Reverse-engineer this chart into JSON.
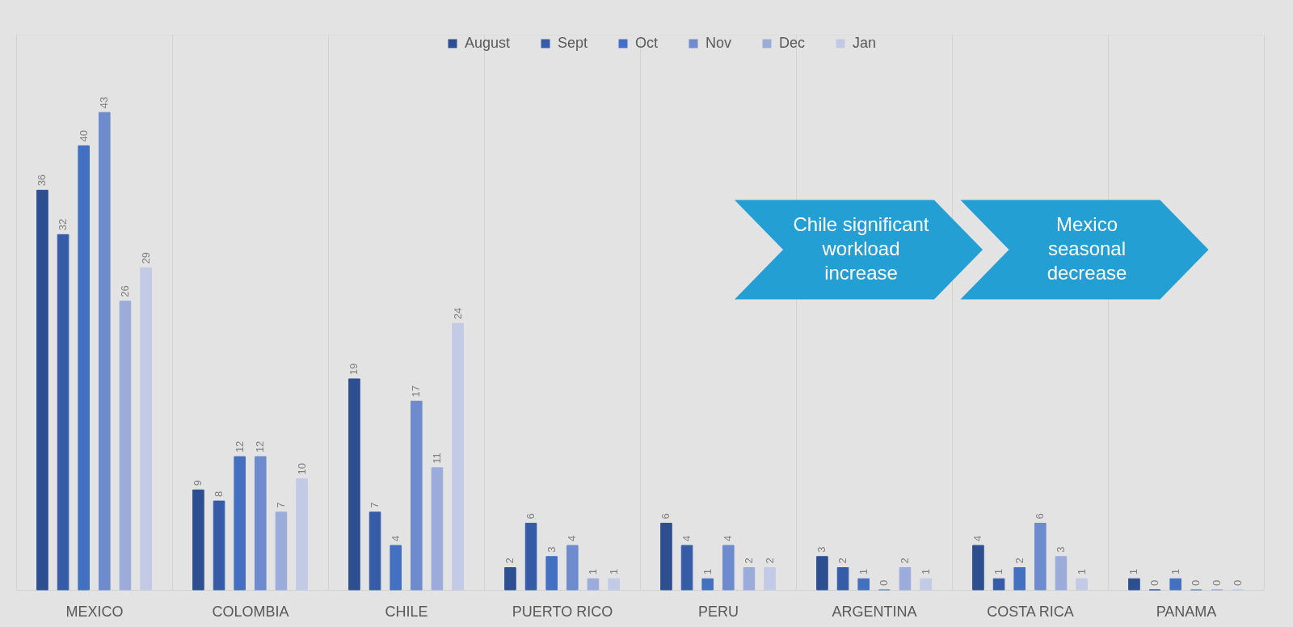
{
  "chart_data": {
    "type": "bar",
    "categories": [
      "MEXICO",
      "COLOMBIA",
      "CHILE",
      "PUERTO RICO",
      "PERU",
      "ARGENTINA",
      "COSTA RICA",
      "PANAMA"
    ],
    "series": [
      {
        "name": "August",
        "color": "#2e4f8f",
        "values": [
          36,
          9,
          19,
          2,
          6,
          3,
          4,
          1
        ]
      },
      {
        "name": "Sept",
        "color": "#365ca8",
        "values": [
          32,
          8,
          7,
          6,
          4,
          2,
          1,
          0
        ]
      },
      {
        "name": "Oct",
        "color": "#4470c2",
        "values": [
          40,
          12,
          4,
          3,
          1,
          1,
          2,
          1
        ]
      },
      {
        "name": "Nov",
        "color": "#6d8bcd",
        "values": [
          43,
          12,
          17,
          4,
          4,
          0,
          6,
          0
        ]
      },
      {
        "name": "Dec",
        "color": "#9cacda",
        "values": [
          26,
          7,
          11,
          1,
          2,
          2,
          3,
          0
        ]
      },
      {
        "name": "Jan",
        "color": "#c2cae6",
        "values": [
          29,
          10,
          24,
          1,
          2,
          1,
          1,
          0
        ]
      }
    ],
    "ylim": [
      0,
      50
    ],
    "data_labels": true,
    "legend": "top",
    "grid": "x",
    "tick_labels": "x",
    "annotations": [
      "Chile significant\nworkload\nincrease",
      "Mexico\nseasonal\ndecrease"
    ]
  }
}
